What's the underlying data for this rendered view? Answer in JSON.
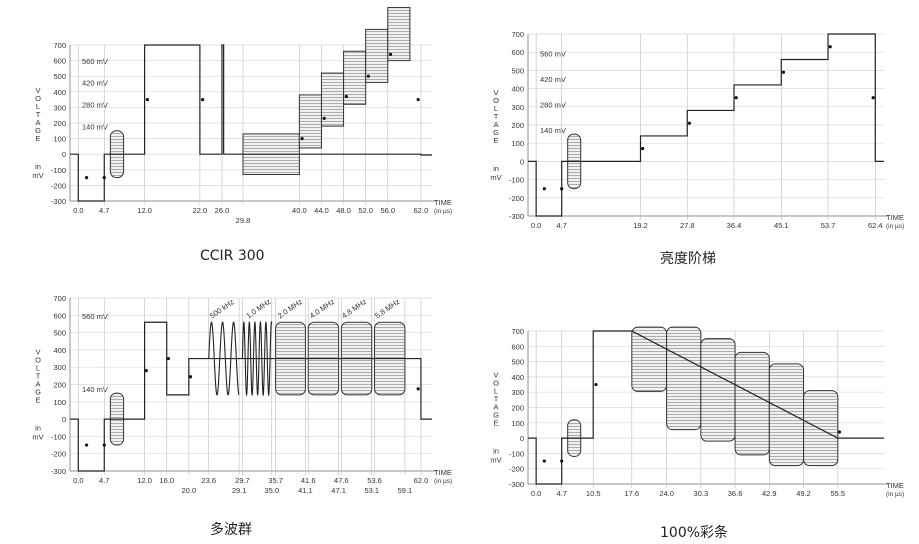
{
  "chart_data": [
    {
      "type": "line",
      "caption": "CCIR 300",
      "ylabel_vertical": "VOLTAGE",
      "ylabel_in": "in",
      "ylabel_unit": "mV",
      "xlabel": "TIME",
      "xlabel_unit": "(in µs)",
      "yticks": [
        700,
        600,
        500,
        400,
        300,
        200,
        100,
        0,
        -100,
        -200,
        -300
      ],
      "ylim": [
        -300,
        700
      ],
      "xlim": [
        -1.5,
        64
      ],
      "level_labels": [
        {
          "text": "560 mV",
          "y": 560
        },
        {
          "text": "420 mV",
          "y": 420
        },
        {
          "text": "280 mV",
          "y": 280
        },
        {
          "text": "140 mV",
          "y": 140
        }
      ],
      "x_ticks": [
        {
          "x": 0,
          "label": "0.0",
          "row": 0
        },
        {
          "x": 4.7,
          "label": "4.7",
          "row": 0
        },
        {
          "x": 12,
          "label": "12.0",
          "row": 0
        },
        {
          "x": 22,
          "label": "22.0",
          "row": 0
        },
        {
          "x": 26,
          "label": "26.0",
          "row": 0
        },
        {
          "x": 29.8,
          "label": "29.8",
          "row": 1
        },
        {
          "x": 40,
          "label": "40.0",
          "row": 0
        },
        {
          "x": 44,
          "label": "44.0",
          "row": 0
        },
        {
          "x": 48,
          "label": "48.0",
          "row": 0
        },
        {
          "x": 52,
          "label": "52.0",
          "row": 0
        },
        {
          "x": 56,
          "label": "56.0",
          "row": 0
        },
        {
          "x": 62,
          "label": "62.0",
          "row": 0
        }
      ],
      "waveform": [
        [
          -1.5,
          0
        ],
        [
          0,
          0
        ],
        [
          0,
          -300
        ],
        [
          4.7,
          -300
        ],
        [
          4.7,
          0
        ],
        [
          12,
          0
        ],
        [
          12,
          700
        ],
        [
          22,
          700
        ],
        [
          22,
          0
        ],
        [
          26,
          0
        ],
        [
          26,
          700
        ],
        [
          26.3,
          700
        ],
        [
          26.3,
          0
        ],
        [
          29.8,
          0
        ],
        [
          62,
          0
        ],
        [
          62,
          -5
        ],
        [
          64,
          -5
        ]
      ],
      "bursts": [
        {
          "x0": 5.8,
          "x1": 8.2,
          "ymin": -150,
          "ymax": 150,
          "rounded": true
        },
        {
          "x0": 29.8,
          "x1": 40,
          "ymin": -130,
          "ymax": 130,
          "rounded": false
        },
        {
          "x0": 40,
          "x1": 44,
          "ymin": 40,
          "ymax": 380,
          "rounded": false
        },
        {
          "x0": 44,
          "x1": 48,
          "ymin": 180,
          "ymax": 520,
          "rounded": false
        },
        {
          "x0": 48,
          "x1": 52,
          "ymin": 320,
          "ymax": 660,
          "rounded": false
        },
        {
          "x0": 52,
          "x1": 56,
          "ymin": 460,
          "ymax": 800,
          "rounded": false
        },
        {
          "x0": 56,
          "x1": 60,
          "ymin": 600,
          "ymax": 940,
          "rounded": false
        }
      ],
      "markers": [
        [
          1.5,
          -150
        ],
        [
          4.7,
          -150
        ],
        [
          12.5,
          350
        ],
        [
          22.5,
          350
        ],
        [
          40.5,
          100
        ],
        [
          44.5,
          230
        ],
        [
          48.5,
          370
        ],
        [
          52.5,
          500
        ],
        [
          56.5,
          640
        ],
        [
          61.5,
          350
        ]
      ]
    },
    {
      "type": "line",
      "caption": "亮度阶梯",
      "ylabel_vertical": "VOLTAGE",
      "ylabel_in": "in",
      "ylabel_unit": "mV",
      "xlabel": "TIME",
      "xlabel_unit": "(in µs)",
      "yticks": [
        700,
        600,
        500,
        400,
        300,
        200,
        100,
        0,
        -100,
        -200,
        -300
      ],
      "ylim": [
        -300,
        700
      ],
      "xlim": [
        -1.5,
        64
      ],
      "level_labels": [
        {
          "text": "560 mV",
          "y": 560
        },
        {
          "text": "420 mV",
          "y": 420
        },
        {
          "text": "280 mV",
          "y": 280
        },
        {
          "text": "140 mV",
          "y": 140
        }
      ],
      "x_ticks": [
        {
          "x": 0,
          "label": "0.0",
          "row": 0
        },
        {
          "x": 4.7,
          "label": "4.7",
          "row": 0
        },
        {
          "x": 19.2,
          "label": "19.2",
          "row": 0
        },
        {
          "x": 27.8,
          "label": "27.8",
          "row": 0
        },
        {
          "x": 36.4,
          "label": "36.4",
          "row": 0
        },
        {
          "x": 45.1,
          "label": "45.1",
          "row": 0
        },
        {
          "x": 53.7,
          "label": "53.7",
          "row": 0
        },
        {
          "x": 62.4,
          "label": "62.4",
          "row": 0
        }
      ],
      "waveform": [
        [
          -1.5,
          0
        ],
        [
          0,
          0
        ],
        [
          0,
          -300
        ],
        [
          4.7,
          -300
        ],
        [
          4.7,
          0
        ],
        [
          19.2,
          0
        ],
        [
          19.2,
          140
        ],
        [
          27.8,
          140
        ],
        [
          27.8,
          280
        ],
        [
          36.4,
          280
        ],
        [
          36.4,
          420
        ],
        [
          45.1,
          420
        ],
        [
          45.1,
          560
        ],
        [
          53.7,
          560
        ],
        [
          53.7,
          700
        ],
        [
          62.4,
          700
        ],
        [
          62.4,
          0
        ],
        [
          64,
          0
        ]
      ],
      "bursts": [
        {
          "x0": 5.8,
          "x1": 8.2,
          "ymin": -150,
          "ymax": 150,
          "rounded": true
        }
      ],
      "markers": [
        [
          1.5,
          -150
        ],
        [
          4.7,
          -150
        ],
        [
          19.6,
          70
        ],
        [
          28.2,
          210
        ],
        [
          36.8,
          350
        ],
        [
          45.5,
          490
        ],
        [
          54.1,
          630
        ],
        [
          62.0,
          350
        ]
      ]
    },
    {
      "type": "line",
      "caption": "多波群",
      "ylabel_vertical": "VOLTAGE",
      "ylabel_in": "in",
      "ylabel_unit": "mV",
      "xlabel": "TIME",
      "xlabel_unit": "(in µs)",
      "yticks": [
        700,
        600,
        500,
        400,
        300,
        200,
        100,
        0,
        -100,
        -200,
        -300
      ],
      "ylim": [
        -300,
        700
      ],
      "xlim": [
        -1.5,
        64
      ],
      "level_labels": [
        {
          "text": "560 mV",
          "y": 560
        },
        {
          "text": "140 mV",
          "y": 140
        }
      ],
      "freq_labels": [
        {
          "text": "500 kHz",
          "x": 24.2,
          "y": 580
        },
        {
          "text": "1.0 MHz",
          "x": 30.8,
          "y": 580
        },
        {
          "text": "2.0 MHz",
          "x": 36.5,
          "y": 580
        },
        {
          "text": "4.0 MHz",
          "x": 42.3,
          "y": 580
        },
        {
          "text": "4.8 MHz",
          "x": 48.1,
          "y": 580
        },
        {
          "text": "5.8 MHz",
          "x": 54.1,
          "y": 580
        }
      ],
      "x_ticks": [
        {
          "x": 0,
          "label": "0.0",
          "row": 0
        },
        {
          "x": 4.7,
          "label": "4.7",
          "row": 0
        },
        {
          "x": 12,
          "label": "12.0",
          "row": 0
        },
        {
          "x": 16,
          "label": "16.0",
          "row": 0
        },
        {
          "x": 20,
          "label": "20.0",
          "row": 1
        },
        {
          "x": 23.6,
          "label": "23.6",
          "row": 0
        },
        {
          "x": 29.1,
          "label": "29.1",
          "row": 1
        },
        {
          "x": 29.7,
          "label": "29.7",
          "row": 0
        },
        {
          "x": 35,
          "label": "35.0",
          "row": 1
        },
        {
          "x": 35.7,
          "label": "35.7",
          "row": 0
        },
        {
          "x": 41.1,
          "label": "41.1",
          "row": 1
        },
        {
          "x": 41.6,
          "label": "41.6",
          "row": 0
        },
        {
          "x": 47.1,
          "label": "47.1",
          "row": 1
        },
        {
          "x": 47.6,
          "label": "47.6",
          "row": 0
        },
        {
          "x": 53.1,
          "label": "53.1",
          "row": 1
        },
        {
          "x": 53.6,
          "label": "53.6",
          "row": 0
        },
        {
          "x": 59.1,
          "label": "59.1",
          "row": 1
        },
        {
          "x": 62,
          "label": "62.0",
          "row": 0
        }
      ],
      "waveform": [
        [
          -1.5,
          0
        ],
        [
          0,
          0
        ],
        [
          0,
          -300
        ],
        [
          4.7,
          -300
        ],
        [
          4.7,
          0
        ],
        [
          12,
          0
        ],
        [
          12,
          560
        ],
        [
          16,
          560
        ],
        [
          16,
          140
        ],
        [
          20,
          140
        ],
        [
          20,
          350
        ],
        [
          23.6,
          350
        ],
        [
          35,
          350
        ],
        [
          59.1,
          350
        ],
        [
          62,
          350
        ],
        [
          62,
          0
        ],
        [
          64,
          0
        ]
      ],
      "sines": [
        {
          "x0": 23.6,
          "x1": 29.1,
          "center": 350,
          "amp": 210,
          "cycles": 2.75
        },
        {
          "x0": 29.7,
          "x1": 35.0,
          "center": 350,
          "amp": 210,
          "cycles": 5.3
        }
      ],
      "bursts": [
        {
          "x0": 5.8,
          "x1": 8.2,
          "ymin": -150,
          "ymax": 150,
          "rounded": true
        },
        {
          "x0": 35.7,
          "x1": 41.1,
          "ymin": 140,
          "ymax": 560,
          "rounded": true
        },
        {
          "x0": 41.6,
          "x1": 47.1,
          "ymin": 140,
          "ymax": 560,
          "rounded": true
        },
        {
          "x0": 47.6,
          "x1": 53.1,
          "ymin": 140,
          "ymax": 560,
          "rounded": true
        },
        {
          "x0": 53.6,
          "x1": 59.1,
          "ymin": 140,
          "ymax": 560,
          "rounded": true
        }
      ],
      "markers": [
        [
          1.5,
          -150
        ],
        [
          4.7,
          -150
        ],
        [
          12.3,
          280
        ],
        [
          16.3,
          350
        ],
        [
          20.3,
          245
        ],
        [
          61.5,
          175
        ]
      ]
    },
    {
      "type": "line",
      "caption": "100%彩条",
      "ylabel_vertical": "VOLTAGE",
      "ylabel_in": "in",
      "ylabel_unit": "mV",
      "xlabel": "TIME",
      "xlabel_unit": "(in µs)",
      "yticks": [
        700,
        600,
        500,
        400,
        300,
        200,
        100,
        0,
        -100,
        -200,
        -300
      ],
      "ylim": [
        -300,
        700
      ],
      "xlim": [
        -1.5,
        64
      ],
      "x_ticks": [
        {
          "x": 0,
          "label": "0.0",
          "row": 0
        },
        {
          "x": 4.7,
          "label": "4.7",
          "row": 0
        },
        {
          "x": 10.5,
          "label": "10.5",
          "row": 0
        },
        {
          "x": 17.6,
          "label": "17.6",
          "row": 0
        },
        {
          "x": 24.0,
          "label": "24.0",
          "row": 0
        },
        {
          "x": 30.3,
          "label": "30.3",
          "row": 0
        },
        {
          "x": 36.6,
          "label": "36.6",
          "row": 0
        },
        {
          "x": 42.9,
          "label": "42.9",
          "row": 0
        },
        {
          "x": 49.2,
          "label": "49.2",
          "row": 0
        },
        {
          "x": 55.5,
          "label": "55.5",
          "row": 0
        }
      ],
      "waveform": [
        [
          -1.5,
          0
        ],
        [
          0,
          0
        ],
        [
          0,
          -300
        ],
        [
          4.7,
          -300
        ],
        [
          4.7,
          0
        ],
        [
          10.5,
          0
        ],
        [
          10.5,
          700
        ],
        [
          17.6,
          700
        ],
        [
          55.5,
          0
        ],
        [
          64,
          0
        ]
      ],
      "bursts": [
        {
          "x0": 5.8,
          "x1": 8.2,
          "ymin": -120,
          "ymax": 120,
          "rounded": true
        },
        {
          "x0": 17.6,
          "x1": 24.0,
          "ymin": 305,
          "ymax": 725,
          "rounded": true
        },
        {
          "x0": 24.0,
          "x1": 30.3,
          "ymin": 55,
          "ymax": 725,
          "rounded": true
        },
        {
          "x0": 30.3,
          "x1": 36.6,
          "ymin": -20,
          "ymax": 650,
          "rounded": true
        },
        {
          "x0": 36.6,
          "x1": 42.9,
          "ymin": -110,
          "ymax": 560,
          "rounded": true
        },
        {
          "x0": 42.9,
          "x1": 49.2,
          "ymin": -180,
          "ymax": 485,
          "rounded": true
        },
        {
          "x0": 49.2,
          "x1": 55.5,
          "ymin": -180,
          "ymax": 310,
          "rounded": true
        }
      ],
      "markers": [
        [
          1.5,
          -150
        ],
        [
          4.7,
          -150
        ],
        [
          11.0,
          350
        ],
        [
          55.8,
          40
        ]
      ]
    }
  ]
}
